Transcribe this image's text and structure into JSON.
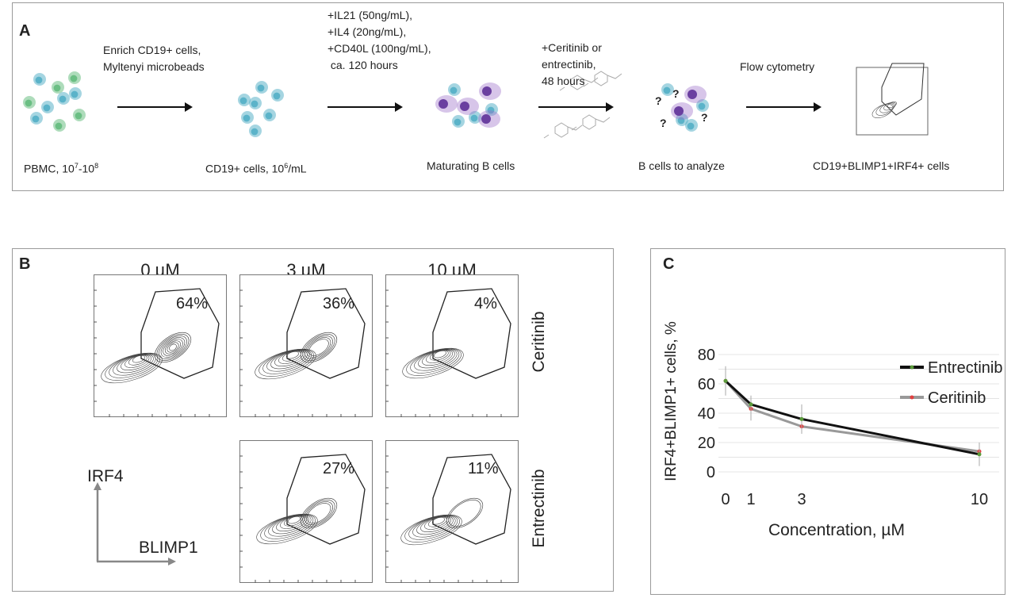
{
  "panel_a": {
    "label": "A",
    "steps": [
      {
        "caption": "PBMC, 10",
        "sup1": "7",
        "mid": "-10",
        "sup2": "8"
      },
      {
        "caption": "CD19+ cells, 10",
        "sup1": "6",
        "mid": "/mL"
      },
      {
        "caption": "Maturating B cells"
      },
      {
        "caption": "B cells to analyze"
      },
      {
        "caption": "CD19+BLIMP1+IRF4+ cells"
      }
    ],
    "arrows": [
      {
        "lines": [
          "Enrich CD19+ cells,",
          "Myltenyi microbeads"
        ]
      },
      {
        "lines": [
          "+IL21 (50ng/mL),",
          "+IL4 (20ng/mL),",
          "+CD40L (100ng/mL),",
          " ca. 120 hours"
        ]
      },
      {
        "lines": [
          "+Ceritinib or",
          "entrectinib,",
          "48 hours"
        ]
      },
      {
        "lines": [
          "Flow cytometry"
        ]
      }
    ],
    "unknown_mark": "?",
    "colors": {
      "b_cell": "#5bb3c9",
      "other_cell": "#6bbf84",
      "plasma_cell": "#9a6fc7"
    }
  },
  "panel_b": {
    "label": "B",
    "concentrations": [
      "0 µM",
      "3 µM",
      "10 µM"
    ],
    "rows": [
      {
        "drug": "Ceritinib",
        "percents": [
          "64%",
          "36%",
          "4%"
        ]
      },
      {
        "drug": "Entrectinib",
        "percents": [
          null,
          "27%",
          "11%"
        ]
      }
    ],
    "y_axis": "IRF4",
    "x_axis": "BLIMP1"
  },
  "chart_data": {
    "type": "line",
    "panel_label": "C",
    "xlabel": "Concentration, µM",
    "ylabel": "IRF4+BLIMP1+ cells, %",
    "x": [
      0,
      1,
      3,
      10
    ],
    "x_ticks": [
      "0",
      "1",
      "3",
      "10"
    ],
    "y_ticks": [
      "0",
      "20",
      "40",
      "60",
      "80"
    ],
    "xlim": [
      0,
      10
    ],
    "ylim": [
      0,
      80
    ],
    "grid": true,
    "legend": "top-right",
    "series": [
      {
        "name": "Entrectinib",
        "values": [
          62,
          46,
          36,
          12
        ],
        "errors": [
          10,
          6,
          10,
          8
        ],
        "color": "#111111",
        "marker": "#5a9a3a"
      },
      {
        "name": "Ceritinib",
        "values": [
          62,
          43,
          31,
          14
        ],
        "errors": [
          5,
          8,
          5,
          6
        ],
        "color": "#999999",
        "marker": "#e04040"
      }
    ]
  }
}
